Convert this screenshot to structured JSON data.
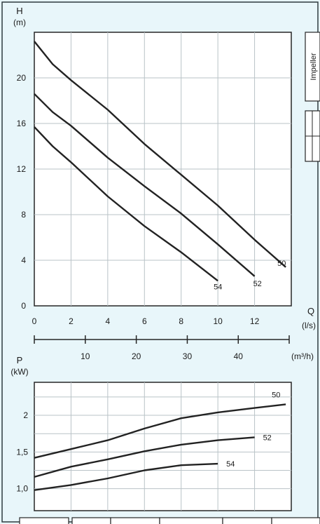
{
  "colors": {
    "panel_background": "#e8f6fa",
    "curve": "#222222",
    "grid": "#b9c3c7",
    "frame": "#262626"
  },
  "chart_data": [
    {
      "type": "line",
      "title": "",
      "ylabel_symbol": "H",
      "ylabel_unit": "(m)",
      "xlabel_symbol": "Q",
      "xlabel_unit": "(l/s)",
      "secondary_x_unit": "(m³/h)",
      "xlim": [
        0,
        14
      ],
      "ylim": [
        0,
        24
      ],
      "x_ticks": [
        0,
        2,
        4,
        6,
        8,
        10,
        12
      ],
      "y_ticks": [
        0,
        4,
        8,
        12,
        16,
        20
      ],
      "secondary_x_ticks": [
        10,
        20,
        30,
        40
      ],
      "grid": true,
      "series": [
        {
          "name": "50",
          "x": [
            0,
            1,
            2,
            4,
            6,
            8,
            10,
            12,
            13.7
          ],
          "y": [
            23.2,
            21.2,
            19.8,
            17.2,
            14.2,
            11.5,
            8.8,
            5.8,
            3.4
          ]
        },
        {
          "name": "52",
          "x": [
            0,
            1,
            2,
            4,
            6,
            8,
            10,
            12
          ],
          "y": [
            18.6,
            17.0,
            15.8,
            13.0,
            10.5,
            8.1,
            5.4,
            2.6
          ]
        },
        {
          "name": "54",
          "x": [
            0,
            1,
            2,
            4,
            6,
            8,
            10
          ],
          "y": [
            15.7,
            14.0,
            12.6,
            9.6,
            7.0,
            4.7,
            2.2
          ]
        }
      ]
    },
    {
      "type": "line",
      "title": "",
      "ylabel_symbol": "P",
      "ylabel_unit": "(kW)",
      "xlim": [
        0,
        14
      ],
      "ylim": [
        0.7,
        2.45
      ],
      "y_tick_labels": [
        "1,0",
        "1,5",
        "2"
      ],
      "y_tick_values": [
        1.0,
        1.5,
        2.0
      ],
      "grid": true,
      "series": [
        {
          "name": "50",
          "x": [
            0,
            2,
            4,
            6,
            8,
            10,
            12,
            13.7
          ],
          "y": [
            1.42,
            1.54,
            1.66,
            1.82,
            1.96,
            2.04,
            2.1,
            2.15
          ]
        },
        {
          "name": "52",
          "x": [
            0,
            2,
            4,
            6,
            8,
            10,
            12
          ],
          "y": [
            1.16,
            1.3,
            1.4,
            1.51,
            1.6,
            1.66,
            1.7
          ]
        },
        {
          "name": "54",
          "x": [
            0,
            2,
            4,
            6,
            8,
            10
          ],
          "y": [
            0.98,
            1.05,
            1.14,
            1.25,
            1.32,
            1.34
          ]
        }
      ]
    }
  ],
  "side_panel": {
    "label": "Impeller"
  }
}
